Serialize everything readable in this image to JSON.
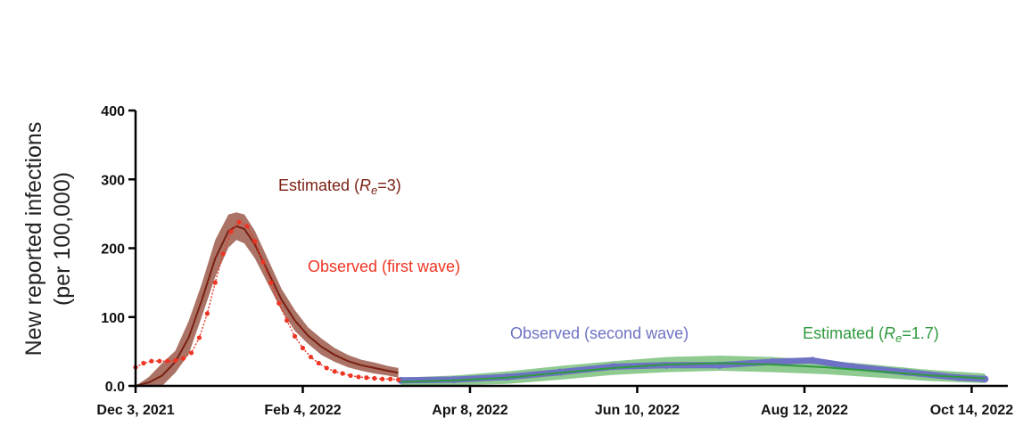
{
  "chart_data": {
    "type": "line",
    "ylabel_line1": "New reported infections",
    "ylabel_line2": "(per 100,000)",
    "ylim": [
      0,
      400
    ],
    "yticks": [
      "0.0",
      "100",
      "200",
      "300",
      "400"
    ],
    "x_tick_labels": [
      "Dec 3, 2021",
      "Feb 4, 2022",
      "Apr 8, 2022",
      "Jun 10, 2022",
      "Aug 12, 2022",
      "Oct 14, 2022"
    ],
    "x_tick_days": [
      0,
      63,
      126,
      189,
      252,
      315
    ],
    "x_unit": "days since Dec 3, 2021",
    "grid": false,
    "colors": {
      "estimated_first": "#7a1f12",
      "estimated_first_band": "#9b5a4a",
      "observed_first": "#ee3524",
      "estimated_second": "#2e9a3e",
      "estimated_second_band": "#7bc17c",
      "observed_second": "#6e72c4"
    },
    "annotations": {
      "est1_prefix": "Estimated (",
      "est1_var": "R",
      "est1_sub": "e",
      "est1_suffix": "=3)",
      "obs1": "Observed (first wave)",
      "obs2": "Observed (second wave)",
      "est2_prefix": "Estimated (",
      "est2_var": "R",
      "est2_sub": "e",
      "est2_suffix": "=1.7)"
    },
    "series": [
      {
        "id": "observed_first",
        "x": [
          0,
          3,
          6,
          9,
          12,
          15,
          18,
          21,
          24,
          27,
          30,
          33,
          36,
          39,
          42,
          45,
          48,
          51,
          54,
          57,
          60,
          63,
          66,
          69,
          72,
          75,
          78,
          81,
          84,
          87,
          90,
          93,
          96,
          99
        ],
        "y": [
          27,
          33,
          36,
          36,
          36,
          37,
          40,
          48,
          70,
          105,
          150,
          192,
          224,
          238,
          232,
          210,
          180,
          150,
          120,
          95,
          72,
          55,
          42,
          33,
          26,
          21,
          18,
          15,
          13,
          12,
          11,
          10,
          10,
          9
        ]
      },
      {
        "id": "estimated_first",
        "x": [
          0,
          5,
          10,
          15,
          20,
          25,
          30,
          35,
          38,
          41,
          45,
          50,
          55,
          60,
          65,
          70,
          75,
          80,
          85,
          90,
          95,
          99
        ],
        "y": [
          0,
          5,
          15,
          35,
          70,
          125,
          185,
          225,
          232,
          228,
          205,
          165,
          125,
          95,
          73,
          57,
          45,
          36,
          30,
          26,
          22,
          19
        ],
        "band": [
          0,
          8,
          18,
          16,
          24,
          24,
          27,
          24,
          20,
          21,
          20,
          18,
          16,
          15,
          12,
          12,
          10,
          9,
          8,
          8,
          7,
          7
        ]
      },
      {
        "id": "observed_second",
        "x": [
          100,
          120,
          140,
          160,
          180,
          200,
          220,
          240,
          255,
          270,
          290,
          310,
          320
        ],
        "y": [
          8,
          9,
          13,
          20,
          28,
          30,
          30,
          35,
          37,
          28,
          20,
          12,
          10
        ]
      },
      {
        "id": "estimated_second",
        "x": [
          100,
          120,
          140,
          160,
          180,
          200,
          220,
          240,
          260,
          280,
          300,
          320
        ],
        "y": [
          6,
          8,
          12,
          19,
          26,
          31,
          33,
          31,
          27,
          21,
          15,
          11
        ],
        "band": [
          6,
          7,
          9,
          10,
          10,
          11,
          11,
          11,
          10,
          9,
          8,
          7
        ]
      }
    ]
  }
}
